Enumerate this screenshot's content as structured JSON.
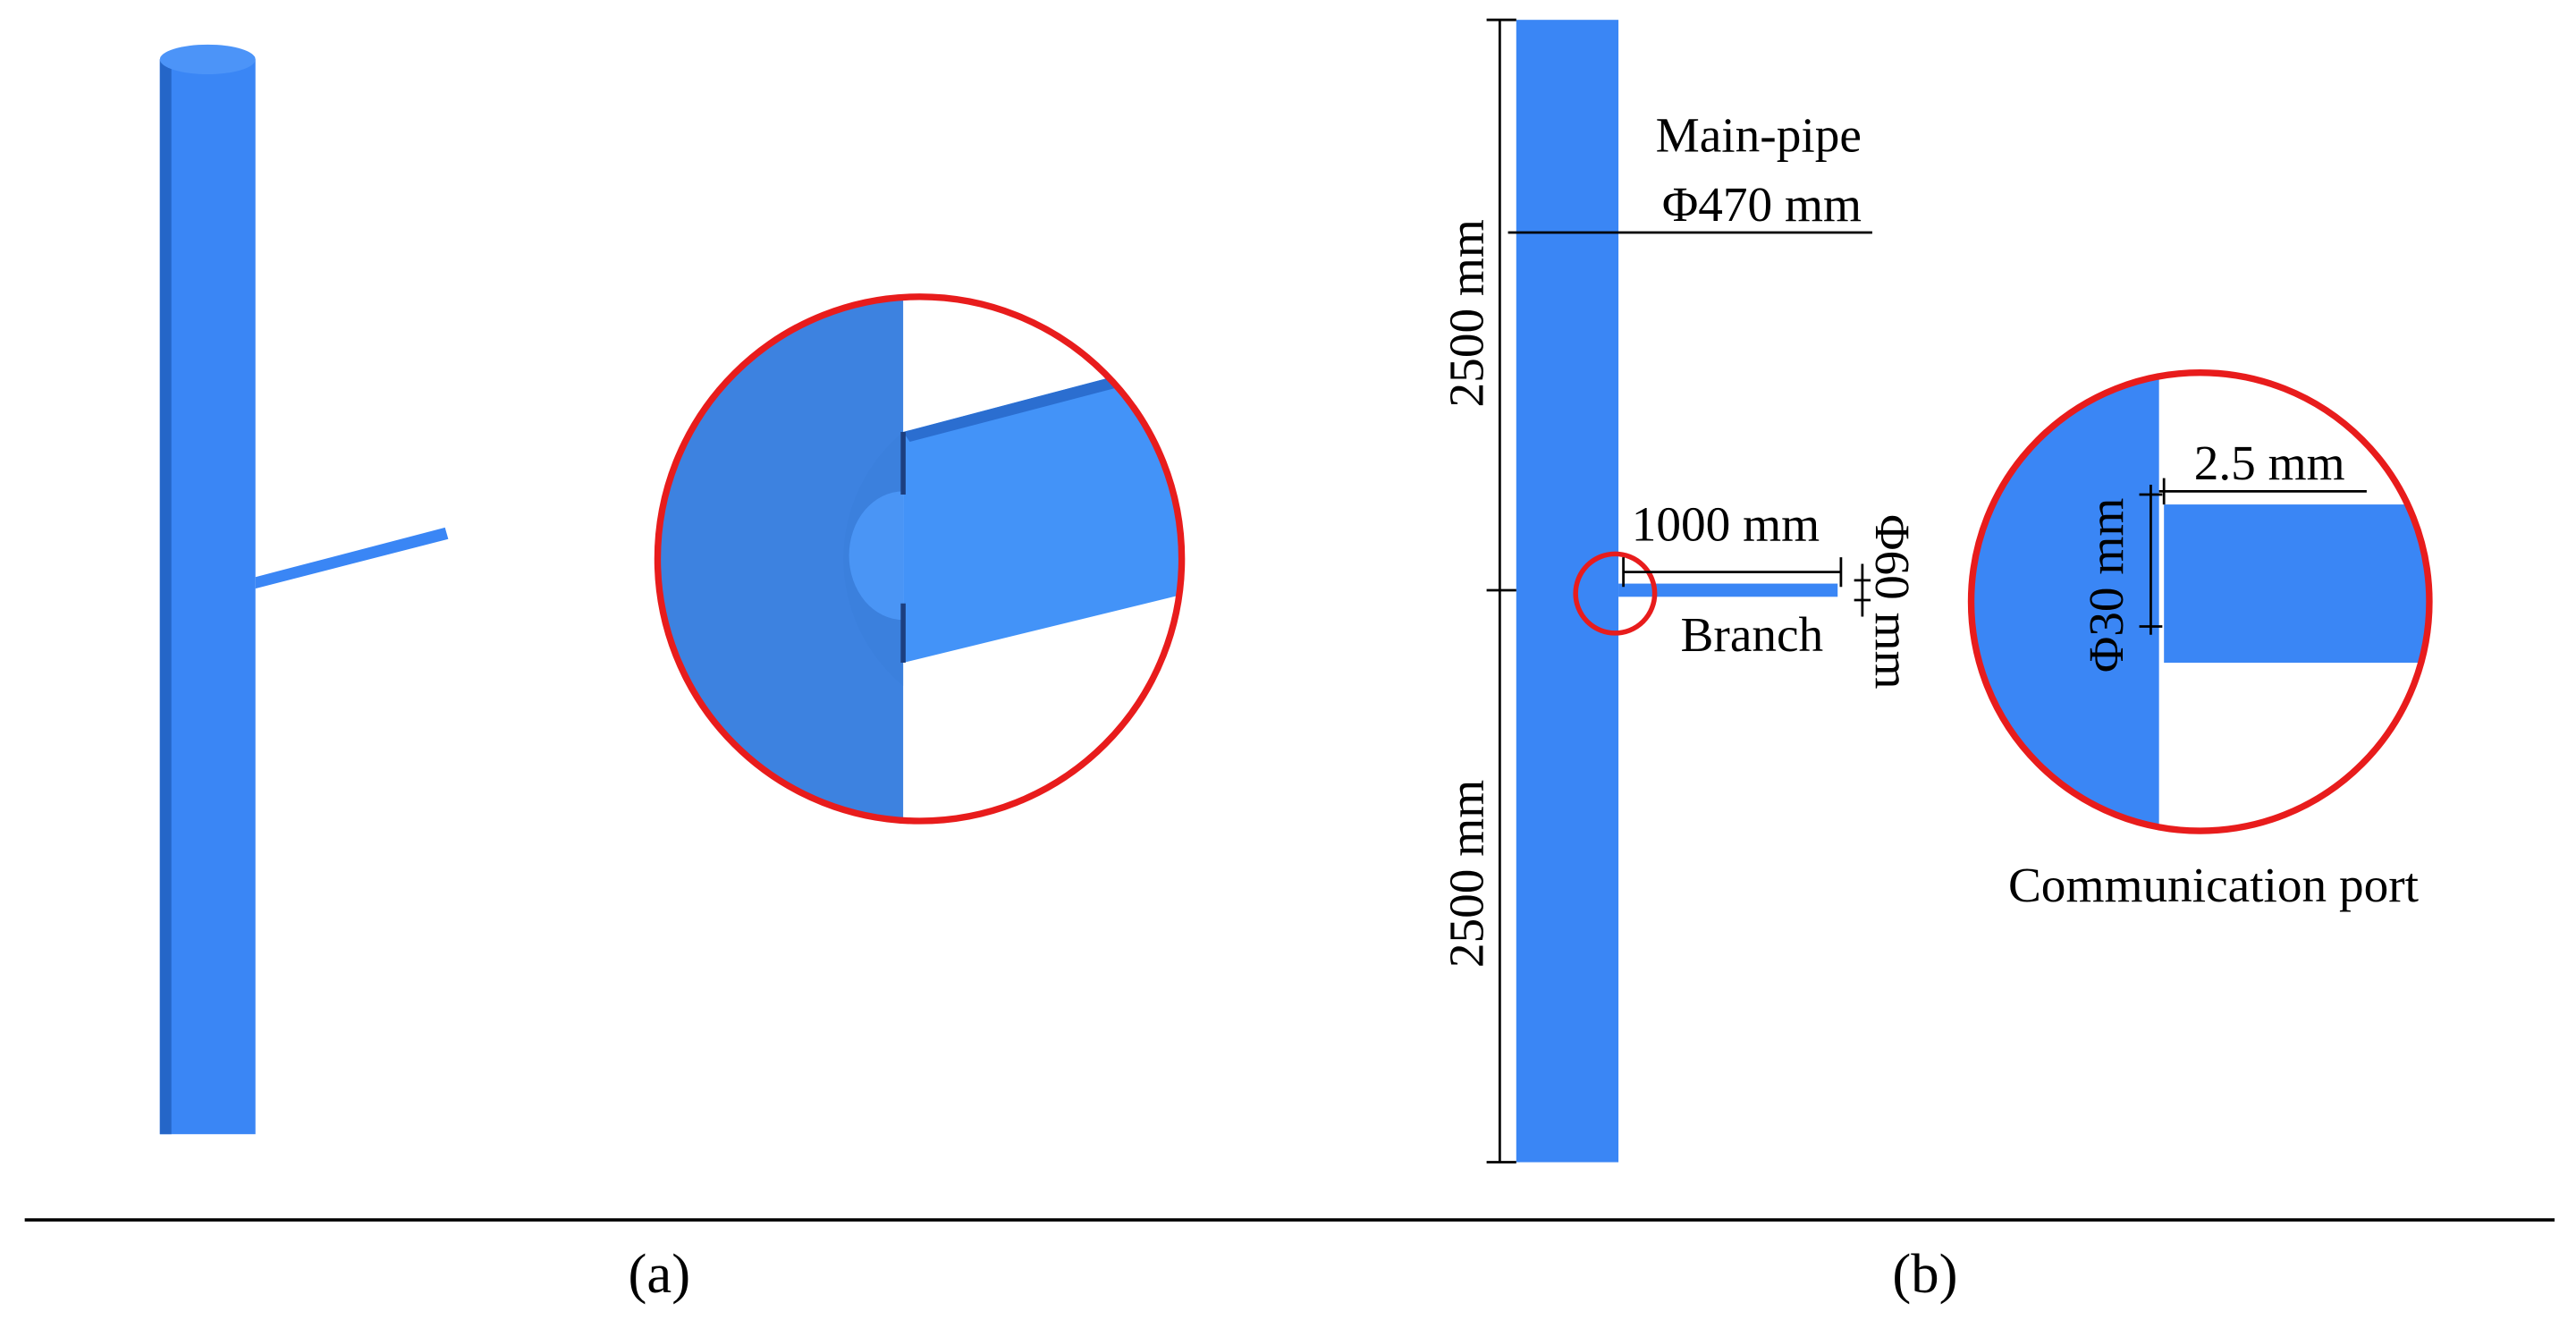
{
  "panels": [
    {
      "caption": "(a)"
    },
    {
      "caption": "(b)",
      "labels": {
        "main_pipe": "Main-pipe",
        "main_diameter": "Φ470 mm",
        "upper_length": "2500 mm",
        "lower_length": "2500 mm",
        "branch_length": "1000 mm",
        "branch_diameter": "Φ60 mm",
        "branch": "Branch",
        "port_length": "2.5 mm",
        "port_diameter": "Φ30 mm",
        "port": "Communication port"
      }
    }
  ]
}
